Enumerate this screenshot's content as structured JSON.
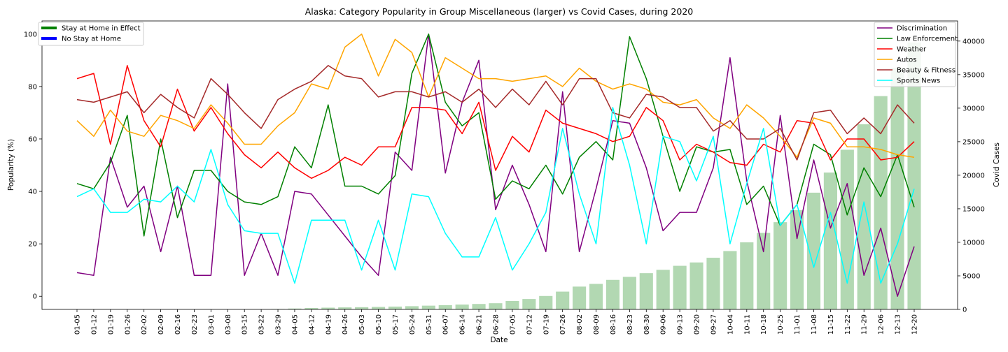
{
  "chart_data": {
    "type": "line",
    "title": "Alaska: Category Popularity in Group Miscellaneous (larger) vs Covid Cases, during 2020",
    "xlabel": "Date",
    "ylabel": "Popularity (%)",
    "y2label": "Covid Cases",
    "ylim": [
      -5,
      105
    ],
    "y2lim": [
      0,
      43000
    ],
    "yticks": [
      0,
      20,
      40,
      60,
      80,
      100
    ],
    "y2ticks": [
      0,
      5000,
      10000,
      15000,
      20000,
      25000,
      30000,
      35000,
      40000
    ],
    "grid": false,
    "x": [
      "01-05",
      "01-12",
      "01-19",
      "01-26",
      "02-02",
      "02-09",
      "02-16",
      "02-23",
      "03-01",
      "03-08",
      "03-15",
      "03-22",
      "03-29",
      "04-05",
      "04-12",
      "04-19",
      "04-26",
      "05-03",
      "05-10",
      "05-17",
      "05-24",
      "05-31",
      "06-07",
      "06-14",
      "06-21",
      "06-28",
      "07-05",
      "07-12",
      "07-19",
      "07-26",
      "08-02",
      "08-09",
      "08-16",
      "08-23",
      "08-30",
      "09-06",
      "09-13",
      "09-20",
      "09-27",
      "10-04",
      "10-11",
      "10-18",
      "10-25",
      "11-01",
      "11-08",
      "11-15",
      "11-22",
      "11-29",
      "12-06",
      "12-13",
      "12-20"
    ],
    "series": [
      {
        "name": "Discrimination",
        "color": "#800080",
        "values": [
          9,
          8,
          53,
          34,
          42,
          17,
          42,
          8,
          8,
          81,
          8,
          24,
          8,
          40,
          39,
          31,
          23,
          15,
          8,
          55,
          48,
          100,
          47,
          74,
          90,
          33,
          50,
          35,
          17,
          78,
          17,
          41,
          67,
          66,
          49,
          25,
          32,
          32,
          49,
          91,
          44,
          17,
          69,
          22,
          52,
          26,
          43,
          8,
          26,
          0,
          19
        ]
      },
      {
        "name": "Law Enforcement",
        "color": "#008000",
        "values": [
          43,
          41,
          51,
          69,
          23,
          60,
          30,
          48,
          48,
          40,
          36,
          35,
          38,
          57,
          49,
          73,
          42,
          42,
          39,
          46,
          85,
          100,
          74,
          65,
          70,
          37,
          44,
          41,
          50,
          39,
          53,
          59,
          52,
          99,
          83,
          61,
          40,
          57,
          55,
          56,
          35,
          42,
          27,
          35,
          58,
          54,
          31,
          49,
          38,
          54,
          34
        ]
      },
      {
        "name": "Weather",
        "color": "#ff0000",
        "values": [
          83,
          85,
          58,
          88,
          67,
          57,
          79,
          63,
          72,
          62,
          54,
          49,
          55,
          49,
          45,
          48,
          53,
          50,
          57,
          57,
          72,
          72,
          71,
          62,
          74,
          48,
          61,
          55,
          71,
          66,
          64,
          62,
          59,
          61,
          72,
          67,
          52,
          58,
          55,
          51,
          50,
          58,
          55,
          67,
          66,
          52,
          60,
          60,
          52,
          53,
          59
        ]
      },
      {
        "name": "Autos",
        "color": "#ffa500",
        "values": [
          67,
          61,
          71,
          63,
          61,
          69,
          67,
          64,
          73,
          66,
          58,
          58,
          65,
          70,
          81,
          79,
          95,
          100,
          84,
          98,
          93,
          76,
          91,
          87,
          83,
          83,
          82,
          83,
          84,
          80,
          87,
          82,
          79,
          81,
          79,
          74,
          73,
          75,
          68,
          64,
          73,
          68,
          61,
          53,
          68,
          66,
          57,
          57,
          56,
          54,
          53
        ]
      },
      {
        "name": "Beauty & Fitness",
        "color": "#a52a2a",
        "values": [
          75,
          74,
          76,
          78,
          70,
          77,
          72,
          68,
          83,
          77,
          70,
          64,
          75,
          79,
          82,
          88,
          84,
          83,
          76,
          78,
          78,
          76,
          78,
          74,
          79,
          72,
          79,
          73,
          82,
          73,
          83,
          83,
          70,
          68,
          77,
          76,
          72,
          72,
          63,
          67,
          60,
          60,
          64,
          52,
          70,
          71,
          62,
          68,
          62,
          73,
          66
        ]
      },
      {
        "name": "Sports News",
        "color": "#00ffff",
        "values": [
          38,
          41,
          32,
          32,
          37,
          36,
          42,
          36,
          56,
          35,
          25,
          24,
          24,
          5,
          29,
          29,
          29,
          10,
          29,
          10,
          39,
          38,
          24,
          15,
          15,
          30,
          10,
          20,
          32,
          64,
          39,
          20,
          72,
          50,
          20,
          61,
          59,
          44,
          61,
          20,
          43,
          64,
          27,
          35,
          11,
          32,
          5,
          36,
          5,
          20,
          41
        ]
      }
    ],
    "covid_cases": [
      0,
      0,
      0,
      0,
      0,
      0,
      0,
      0,
      0,
      0,
      0,
      0,
      60,
      130,
      210,
      260,
      300,
      330,
      370,
      420,
      480,
      560,
      640,
      720,
      810,
      920,
      1250,
      1550,
      2000,
      2650,
      3400,
      3800,
      4400,
      4850,
      5400,
      5900,
      6500,
      7000,
      7700,
      8700,
      10000,
      11400,
      13000,
      14800,
      17400,
      20400,
      23800,
      27600,
      31800,
      36000,
      39800
    ]
  },
  "legend_left": [
    {
      "label": "Stay at Home in Effect",
      "color": "#008000"
    },
    {
      "label": "No Stay at Home",
      "color": "#0000ff"
    }
  ],
  "colors": {
    "bars": "#b2d8b2",
    "y2label": "#0000cd"
  }
}
